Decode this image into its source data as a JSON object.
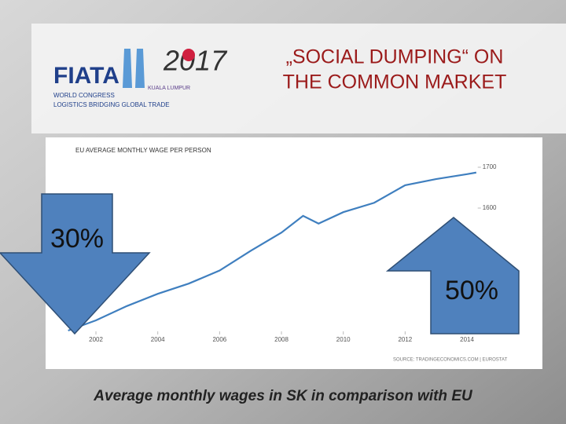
{
  "slide": {
    "title_line1": "„SOCIAL DUMPING“ ON",
    "title_line2": "THE COMMON MARKET",
    "caption": "Average monthly wages in SK in comparison with EU",
    "logo": {
      "name": "FIATA",
      "event": "WORLD CONGRESS",
      "year": "2017",
      "city": "KUALA LUMPUR",
      "tagline": "LOGISTICS BRIDGING GLOBAL TRADE"
    }
  },
  "chart_data": {
    "type": "line",
    "title": "EU AVERAGE MONTHLY WAGE PER PERSON",
    "source": "SOURCE: TRADINGECONOMICS.COM | EUROSTAT",
    "x": [
      2001.1,
      2002,
      2003,
      2004,
      2005,
      2006,
      2007,
      2008,
      2008.7,
      2009.2,
      2010,
      2011,
      2012,
      2013,
      2014,
      2014.3
    ],
    "values": [
      1300,
      1325,
      1360,
      1390,
      1415,
      1447,
      1495,
      1540,
      1581,
      1562,
      1590,
      1613,
      1656,
      1671,
      1683,
      1687
    ],
    "color": "#3f7fbf",
    "xlim": [
      2001,
      2014.5
    ],
    "ylim": [
      1300,
      1745
    ],
    "xticks": [
      2002,
      2004,
      2006,
      2008,
      2010,
      2012,
      2014
    ],
    "yticks": [
      1600,
      1700
    ],
    "grid": false,
    "annotations": [
      "30%",
      "50%"
    ]
  }
}
